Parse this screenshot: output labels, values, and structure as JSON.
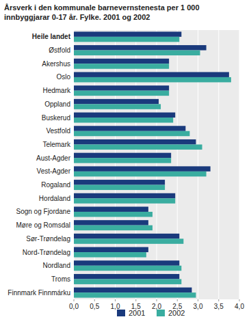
{
  "chart_data": {
    "type": "bar",
    "orientation": "horizontal",
    "title": "Årsverk i den kommunale barnevernstenesta per 1 000\ninnbyggjarar 0-17 år. Fylke. 2001 og 2002",
    "categories": [
      "Heile landet",
      "Østfold",
      "Akershus",
      "Oslo",
      "Hedmark",
      "Oppland",
      "Buskerud",
      "Vestfold",
      "Telemark",
      "Aust-Agder",
      "Vest-Agder",
      "Rogaland",
      "Hordaland",
      "Sogn og Fjordane",
      "Møre og Romsdal",
      "Sør-Trøndelag",
      "Nord-Trøndelag",
      "Nordland",
      "Troms",
      "Finnmark Finnmárku"
    ],
    "series": [
      {
        "name": "2001",
        "color": "#1a3a7c",
        "values": [
          2.6,
          3.2,
          2.3,
          3.75,
          2.3,
          2.05,
          2.45,
          2.7,
          2.95,
          2.35,
          3.3,
          2.2,
          2.45,
          1.8,
          1.8,
          2.55,
          1.8,
          2.55,
          2.55,
          2.85
        ]
      },
      {
        "name": "2002",
        "color": "#3aada0",
        "values": [
          2.55,
          3.05,
          2.3,
          3.8,
          2.3,
          2.1,
          2.4,
          2.8,
          3.1,
          2.35,
          3.2,
          2.2,
          2.45,
          1.9,
          1.9,
          2.65,
          1.75,
          2.6,
          2.6,
          2.95
        ]
      }
    ],
    "xlim": [
      0,
      4.0
    ],
    "xticks": [
      {
        "value": 0.0,
        "label": "0,0"
      },
      {
        "value": 0.5,
        "label": "0,5"
      },
      {
        "value": 1.0,
        "label": "1,0"
      },
      {
        "value": 1.5,
        "label": "1,5"
      },
      {
        "value": 2.0,
        "label": "2,0"
      },
      {
        "value": 2.5,
        "label": "2,5"
      },
      {
        "value": 3.0,
        "label": "3,0"
      },
      {
        "value": 3.5,
        "label": "3,5"
      },
      {
        "value": 4.0,
        "label": "4,0"
      }
    ],
    "grid": true,
    "legend": "bottom"
  }
}
